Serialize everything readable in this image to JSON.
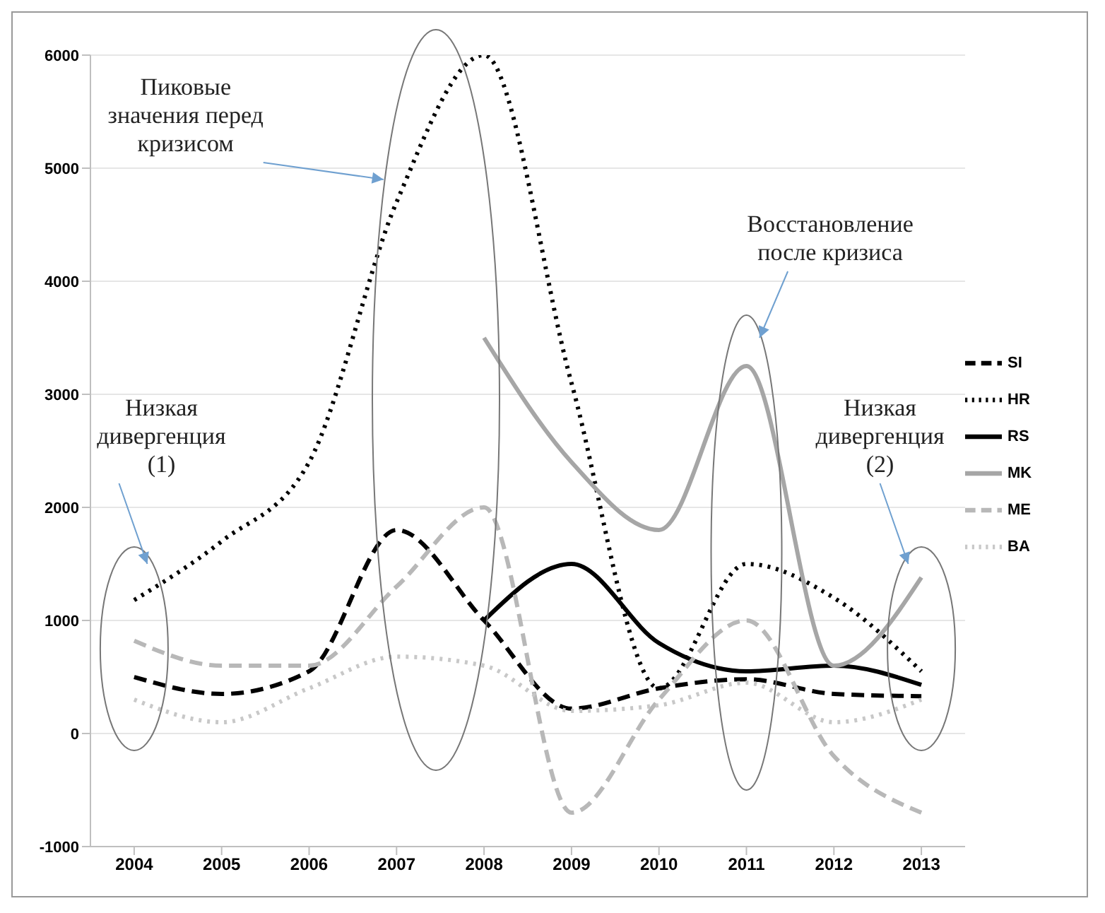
{
  "chart_data": {
    "type": "line",
    "categories": [
      "2004",
      "2005",
      "2006",
      "2007",
      "2008",
      "2009",
      "2010",
      "2011",
      "2012",
      "2013"
    ],
    "series": [
      {
        "name": "SI",
        "color": "#000000",
        "line_style": "dashed",
        "values": [
          500,
          350,
          550,
          1800,
          1000,
          220,
          400,
          480,
          350,
          330
        ]
      },
      {
        "name": "HR",
        "color": "#000000",
        "line_style": "dotted",
        "values": [
          1180,
          1700,
          2400,
          4700,
          6000,
          3100,
          400,
          1500,
          1200,
          550
        ]
      },
      {
        "name": "RS",
        "color": "#000000",
        "line_style": "solid",
        "values": [
          null,
          null,
          null,
          null,
          1000,
          1500,
          800,
          550,
          600,
          430
        ]
      },
      {
        "name": "MK",
        "color": "#a6a6a6",
        "line_style": "solid",
        "values": [
          null,
          null,
          null,
          null,
          3500,
          2400,
          1800,
          3250,
          600,
          1380
        ]
      },
      {
        "name": "ME",
        "color": "#b8b8b8",
        "line_style": "dashed",
        "values": [
          820,
          600,
          600,
          1300,
          2000,
          -700,
          300,
          1000,
          -200,
          -700
        ]
      },
      {
        "name": "BA",
        "color": "#c8c8c8",
        "line_style": "dotted",
        "values": [
          300,
          100,
          400,
          680,
          600,
          200,
          250,
          450,
          100,
          300
        ]
      }
    ],
    "ylim": [
      -1000,
      6000
    ],
    "yticks": [
      -1000,
      0,
      1000,
      2000,
      3000,
      4000,
      5000,
      6000
    ],
    "grid": "y",
    "legend": "right",
    "marker": "none",
    "annotations": [
      "Пиковые\nзначения перед\nкризисом",
      "Восстановление\nпосле кризиса",
      "Низкая\nдивергенция\n(1)",
      "Низкая\nдивергенция\n(2)"
    ]
  }
}
